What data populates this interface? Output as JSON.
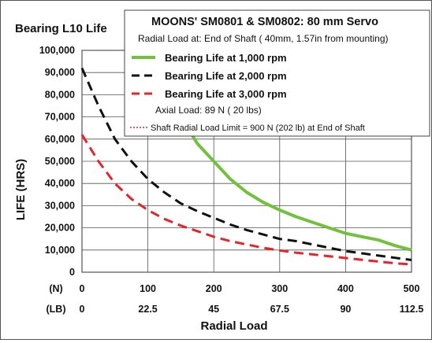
{
  "chart_data": {
    "type": "line",
    "title": "Bearing L10 Life",
    "xlabel": "Radial Load",
    "ylabel": "LIFE (HRS)",
    "xlim": [
      0,
      500
    ],
    "ylim": [
      0,
      100000
    ],
    "x_unit_n": "(N)",
    "x_unit_lb": "(LB)",
    "x_ticks_n": [
      "0",
      "100",
      "200",
      "300",
      "400",
      "500"
    ],
    "x_ticks_lb": [
      "0",
      "22.5",
      "45",
      "67.5",
      "90",
      "112.5"
    ],
    "y_ticks": [
      {
        "value": 0,
        "label": "0"
      },
      {
        "value": 10000,
        "label": "10,000"
      },
      {
        "value": 20000,
        "label": "20,000"
      },
      {
        "value": 30000,
        "label": "30,000"
      },
      {
        "value": 40000,
        "label": "40,000"
      },
      {
        "value": 50000,
        "label": "50,000"
      },
      {
        "value": 60000,
        "label": "60,000"
      },
      {
        "value": 70000,
        "label": "70,000"
      },
      {
        "value": 80000,
        "label": "80,000"
      },
      {
        "value": 90000,
        "label": "90,000"
      },
      {
        "value": 100000,
        "label": "100,000"
      }
    ],
    "grid": true,
    "legend_position": "top-right",
    "legend": {
      "title": "MOONS'  SM0801 & SM0802: 80 mm Servo",
      "radial_note": "Radial Load at:  End of Shaft  ( 40mm, 1.57in  from mounting)",
      "axial_note": "Axial Load:  89  N ( 20  lbs)",
      "limit_label": "Shaft Radial Load Limit  =  900 N (202 lb)  at  End of Shaft",
      "limit_color": "#e8232a"
    },
    "series": [
      {
        "name": "Bearing Life at 1,000 rpm",
        "color": "#72c13d",
        "style": "solid",
        "x": [
          150,
          175,
          200,
          225,
          250,
          275,
          300,
          325,
          350,
          375,
          400,
          425,
          450,
          475,
          500
        ],
        "y": [
          70000,
          58000,
          50000,
          42000,
          36000,
          31500,
          28000,
          25000,
          22500,
          20000,
          17500,
          16000,
          14500,
          12000,
          10000
        ]
      },
      {
        "name": "Bearing Life at 2,000 rpm",
        "color": "#111111",
        "style": "dashed",
        "x": [
          0,
          25,
          50,
          75,
          100,
          125,
          150,
          175,
          200,
          225,
          250,
          275,
          300,
          325,
          350,
          375,
          400,
          425,
          450,
          475,
          500
        ],
        "y": [
          92000,
          75000,
          60000,
          50000,
          42000,
          36000,
          31000,
          27500,
          24500,
          21500,
          19000,
          17000,
          15000,
          14000,
          12500,
          11000,
          9500,
          8500,
          7500,
          6500,
          5500
        ]
      },
      {
        "name": "Bearing Life at 3,000 rpm",
        "color": "#e8232a",
        "style": "dashed",
        "x": [
          0,
          25,
          50,
          75,
          100,
          125,
          150,
          175,
          200,
          225,
          250,
          275,
          300,
          325,
          350,
          375,
          400,
          425,
          450,
          475,
          500
        ],
        "y": [
          62000,
          50000,
          40000,
          33000,
          28000,
          24000,
          21000,
          18500,
          16000,
          14000,
          12500,
          11000,
          9800,
          8800,
          8000,
          7200,
          6400,
          5600,
          4800,
          4000,
          3500
        ]
      }
    ]
  }
}
